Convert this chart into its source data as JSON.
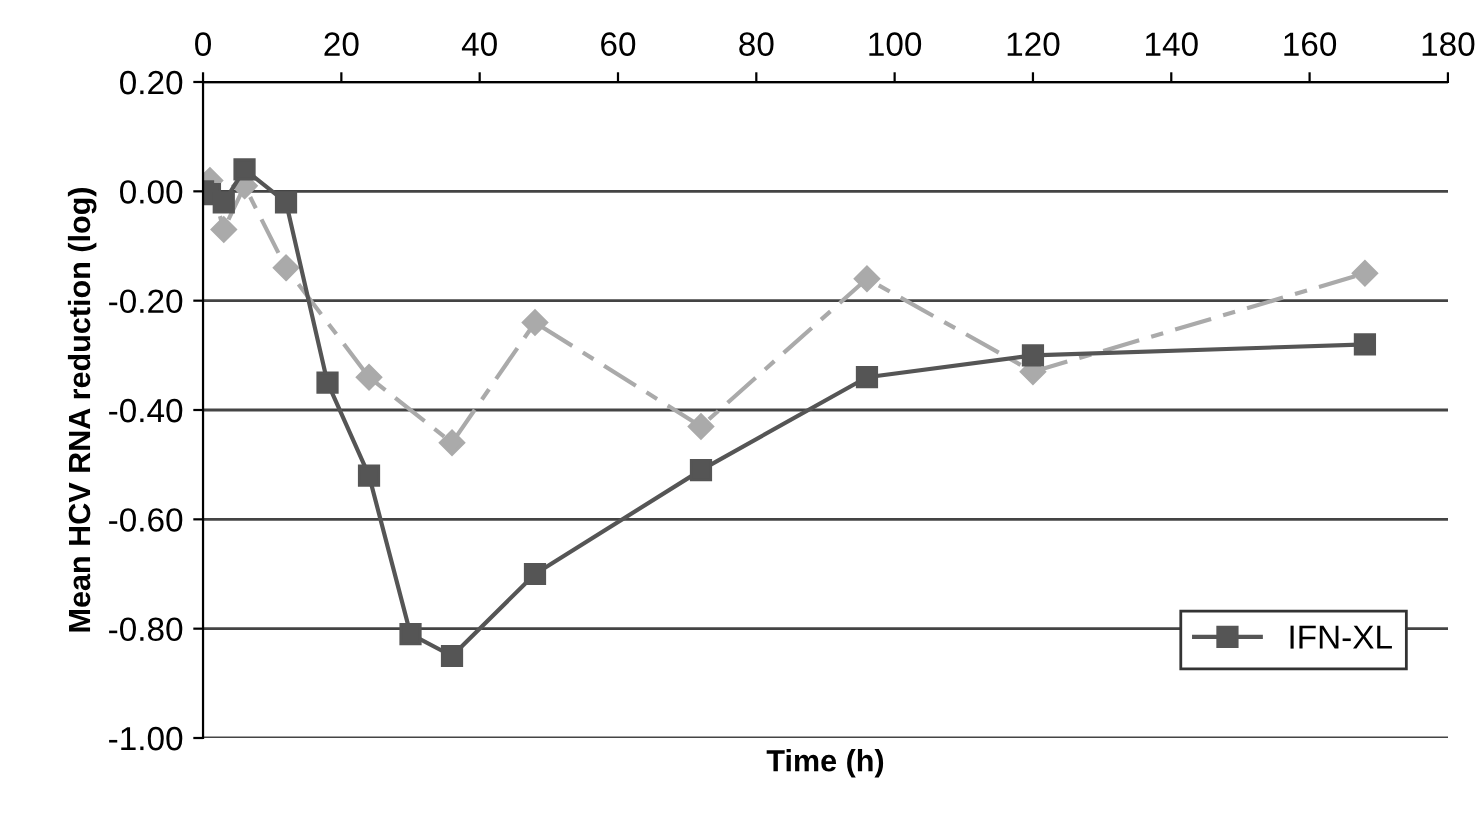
{
  "chart_data": {
    "type": "line",
    "xlabel": "Time (h)",
    "ylabel": "Mean HCV RNA reduction (log)",
    "xlim": [
      0,
      180
    ],
    "xticks": [
      0,
      20,
      40,
      60,
      80,
      100,
      120,
      140,
      160,
      180
    ],
    "ylim": [
      -1.0,
      0.2
    ],
    "yticks": [
      {
        "value": -1.0,
        "label": "-1.00"
      },
      {
        "value": -0.8,
        "label": "-0.80"
      },
      {
        "value": -0.6,
        "label": "-0.60"
      },
      {
        "value": -0.4,
        "label": "-0.40"
      },
      {
        "value": -0.2,
        "label": "-0.20"
      },
      {
        "value": 0.0,
        "label": "0.00"
      },
      {
        "value": 0.2,
        "label": "0.20"
      }
    ],
    "grid": "y",
    "legend": "bottom right",
    "series": [
      {
        "color": "#aaaaaa",
        "marker": "diamond",
        "line_style": "dashed",
        "x": [
          0,
          1,
          3,
          6,
          12,
          24,
          36,
          48,
          72,
          96,
          120,
          168
        ],
        "values": [
          0.0,
          0.02,
          -0.07,
          0.01,
          -0.14,
          -0.34,
          -0.46,
          -0.24,
          -0.43,
          -0.16,
          -0.33,
          -0.15
        ]
      },
      {
        "name": "IFN-XL",
        "color": "#555555",
        "marker": "square",
        "line_style": "solid",
        "x": [
          0,
          1,
          3,
          6,
          12,
          18,
          24,
          30,
          36,
          48,
          72,
          96,
          120,
          168
        ],
        "values": [
          0.0,
          -0.005,
          -0.02,
          0.04,
          -0.02,
          -0.35,
          -0.52,
          -0.81,
          -0.85,
          -0.7,
          -0.51,
          -0.34,
          -0.3,
          -0.28
        ]
      }
    ]
  }
}
